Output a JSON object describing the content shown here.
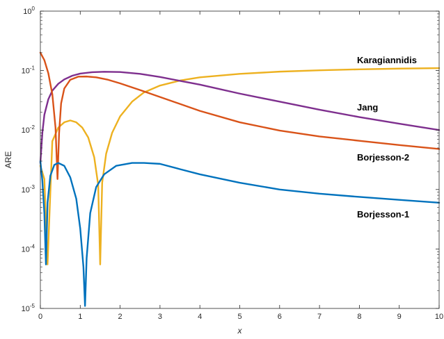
{
  "chart_data": {
    "type": "line",
    "xlabel": "x",
    "ylabel": "ARE",
    "xlim": [
      0,
      10
    ],
    "ylim": [
      1e-05,
      1
    ],
    "yscale": "log",
    "grid": false,
    "x_ticks": [
      "0",
      "1",
      "2",
      "3",
      "4",
      "5",
      "6",
      "7",
      "8",
      "9",
      "10"
    ],
    "y_ticks": [
      {
        "value": 1e-05,
        "base": "10",
        "exp": "-5"
      },
      {
        "value": 0.0001,
        "base": "10",
        "exp": "-4"
      },
      {
        "value": 0.001,
        "base": "10",
        "exp": "-3"
      },
      {
        "value": 0.01,
        "base": "10",
        "exp": "-2"
      },
      {
        "value": 0.1,
        "base": "10",
        "exp": "-1"
      },
      {
        "value": 1,
        "base": "10",
        "exp": "0"
      }
    ],
    "series": [
      {
        "name": "Karagiannidis",
        "color": "#EDB120",
        "x": [
          0.0,
          0.1,
          0.18,
          0.3,
          0.45,
          0.6,
          0.75,
          0.9,
          1.05,
          1.2,
          1.35,
          1.45,
          1.5,
          1.55,
          1.65,
          1.8,
          2.0,
          2.3,
          2.6,
          3.0,
          3.5,
          4.0,
          5.0,
          6.0,
          7.0,
          8.0,
          9.0,
          10.0
        ],
        "y": [
          0.0025,
          0.0015,
          5.5e-05,
          0.0065,
          0.011,
          0.0135,
          0.0145,
          0.0135,
          0.011,
          0.0075,
          0.0035,
          0.0012,
          5.5e-05,
          0.0013,
          0.004,
          0.009,
          0.017,
          0.03,
          0.043,
          0.056,
          0.068,
          0.077,
          0.088,
          0.096,
          0.101,
          0.105,
          0.108,
          0.11
        ]
      },
      {
        "name": "Jang",
        "color": "#7E2F8E",
        "x": [
          0.0,
          0.05,
          0.1,
          0.2,
          0.3,
          0.45,
          0.6,
          0.8,
          1.0,
          1.3,
          1.6,
          2.0,
          2.5,
          3.0,
          4.0,
          5.0,
          6.0,
          7.0,
          8.0,
          9.0,
          10.0
        ],
        "y": [
          0.0028,
          0.009,
          0.018,
          0.033,
          0.046,
          0.06,
          0.071,
          0.082,
          0.089,
          0.094,
          0.0955,
          0.0945,
          0.088,
          0.078,
          0.058,
          0.041,
          0.03,
          0.022,
          0.0165,
          0.0128,
          0.01
        ]
      },
      {
        "name": "Borjesson-2",
        "color": "#D95319",
        "x": [
          0.0,
          0.1,
          0.2,
          0.3,
          0.38,
          0.43,
          0.47,
          0.52,
          0.6,
          0.75,
          0.95,
          1.15,
          1.4,
          1.7,
          2.0,
          2.5,
          3.0,
          4.0,
          5.0,
          6.0,
          7.0,
          8.0,
          9.0,
          10.0
        ],
        "y": [
          0.2,
          0.15,
          0.09,
          0.04,
          0.011,
          0.0015,
          0.009,
          0.028,
          0.05,
          0.07,
          0.079,
          0.0795,
          0.077,
          0.07,
          0.061,
          0.047,
          0.036,
          0.021,
          0.0135,
          0.0098,
          0.0078,
          0.0066,
          0.0056,
          0.0048
        ]
      },
      {
        "name": "Borjesson-1",
        "color": "#0072BD",
        "x": [
          0.0,
          0.05,
          0.1,
          0.14,
          0.18,
          0.25,
          0.35,
          0.45,
          0.6,
          0.75,
          0.9,
          1.0,
          1.08,
          1.12,
          1.16,
          1.25,
          1.4,
          1.6,
          1.9,
          2.3,
          2.6,
          3.0,
          3.5,
          4.0,
          5.0,
          6.0,
          7.0,
          8.0,
          9.0,
          10.0
        ],
        "y": [
          0.003,
          0.0014,
          0.0004,
          5.5e-05,
          0.0006,
          0.0017,
          0.0026,
          0.0028,
          0.0025,
          0.0016,
          0.0007,
          0.00022,
          5e-05,
          1.1e-05,
          7e-05,
          0.0004,
          0.0011,
          0.0018,
          0.0025,
          0.0028,
          0.0028,
          0.0027,
          0.0022,
          0.0018,
          0.0013,
          0.001,
          0.00085,
          0.00075,
          0.00067,
          0.0006
        ]
      }
    ]
  }
}
